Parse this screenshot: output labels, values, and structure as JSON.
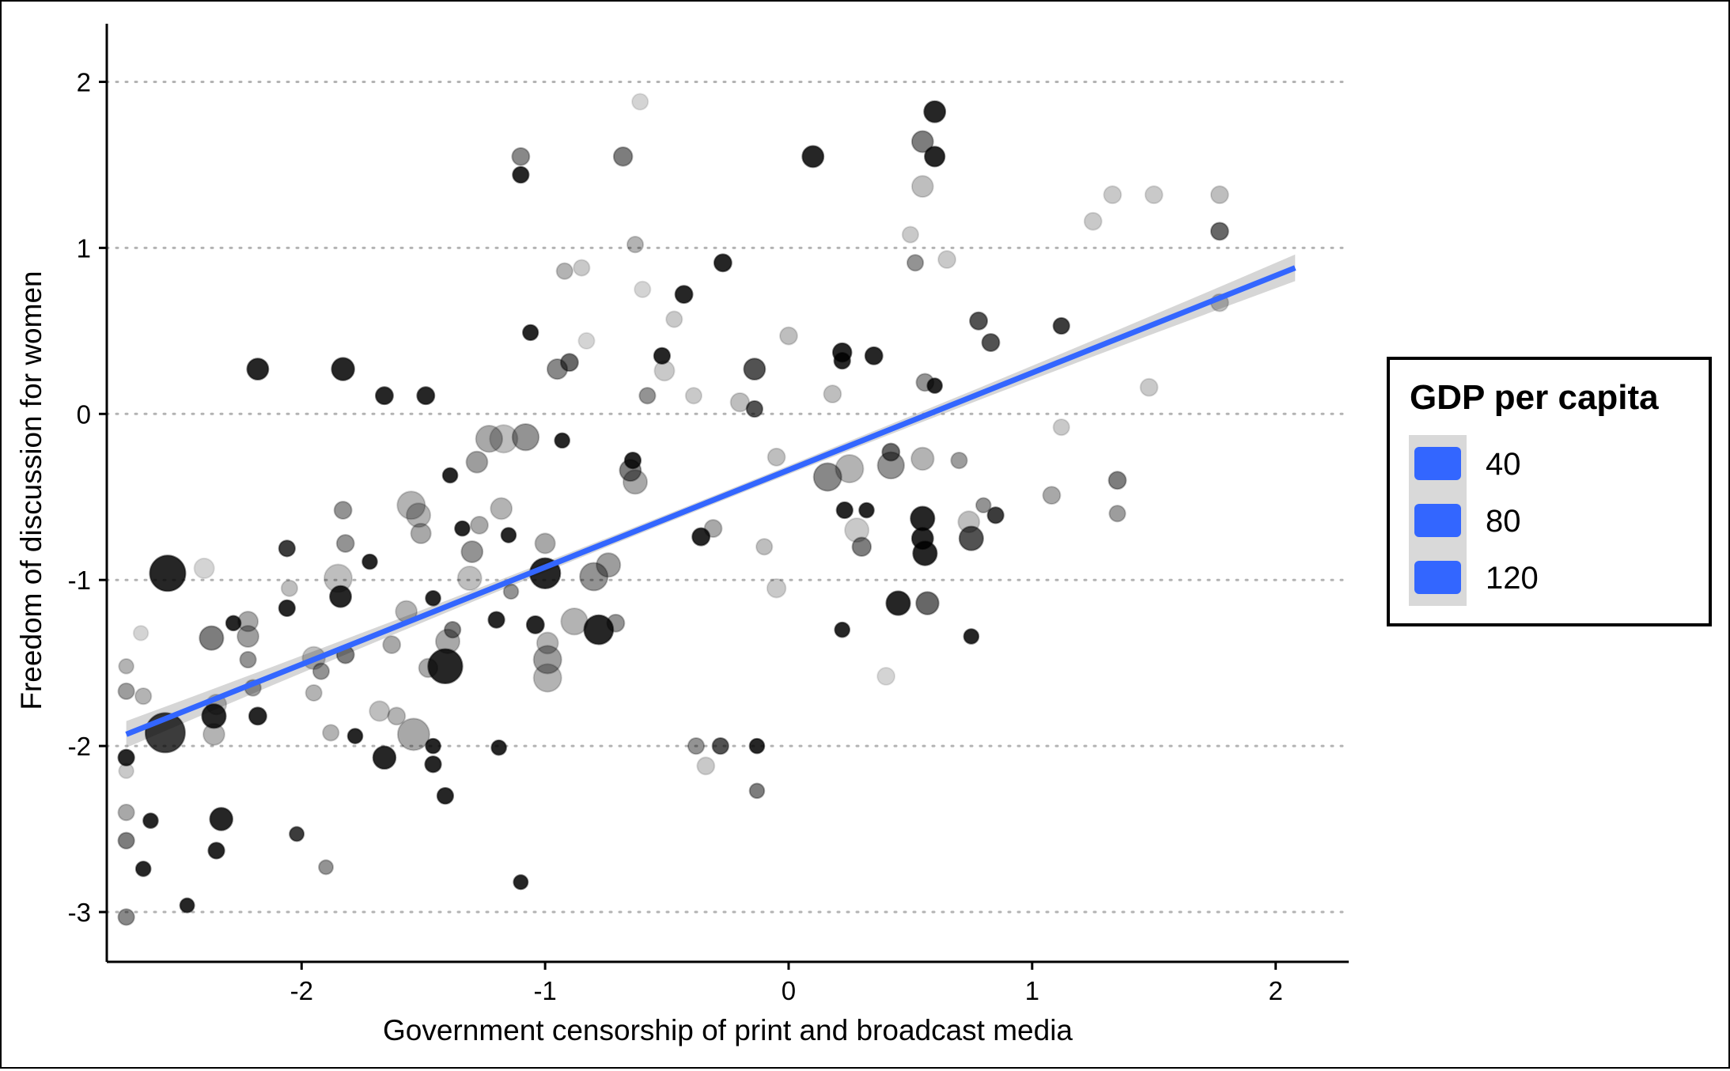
{
  "chart_data": {
    "type": "scatter",
    "title": "",
    "xlabel": "Government censorship of print and broadcast media",
    "ylabel": "Freedom of discussion for women",
    "xlim": [
      -2.8,
      2.3
    ],
    "ylim": [
      -3.3,
      2.35
    ],
    "x_ticks": [
      -2,
      -1,
      0,
      1,
      2
    ],
    "x_tick_labels": [
      "-2",
      "-1",
      "0",
      "1",
      "2"
    ],
    "y_ticks": [
      -3,
      -2,
      -1,
      0,
      1,
      2
    ],
    "y_tick_labels": [
      "-3",
      "-2",
      "-1",
      "0",
      "1",
      "2"
    ],
    "grid": "horizontal dotted lines at y ticks",
    "legend": {
      "title": "GDP per capita",
      "position": "right",
      "entries": [
        "40",
        "80",
        "120"
      ],
      "sizes": [
        40,
        80,
        120
      ]
    },
    "colors": {
      "points": "#000000",
      "trend_line": "#3366FF",
      "confidence_band": "#999999"
    },
    "trend_line": {
      "x": [
        -2.72,
        2.08
      ],
      "y": [
        -1.93,
        0.88
      ],
      "band_halfwidth_ends": 0.08,
      "band_halfwidth_center": 0.025
    },
    "point_format": "[x, y, gdp_per_capita, opacity]",
    "points": [
      [
        -2.55,
        -0.96,
        100,
        1.0
      ],
      [
        -2.56,
        -1.92,
        115,
        0.9
      ],
      [
        -2.72,
        -2.07,
        25,
        1.0
      ],
      [
        -2.72,
        -1.67,
        25,
        0.45
      ],
      [
        -2.72,
        -1.52,
        20,
        0.35
      ],
      [
        -2.72,
        -2.4,
        25,
        0.4
      ],
      [
        -2.72,
        -2.57,
        25,
        0.6
      ],
      [
        -2.72,
        -3.03,
        25,
        0.55
      ],
      [
        -2.72,
        -2.15,
        20,
        0.25
      ],
      [
        -2.65,
        -1.7,
        25,
        0.35
      ],
      [
        -2.65,
        -2.74,
        20,
        1.0
      ],
      [
        -2.62,
        -2.45,
        20,
        1.0
      ],
      [
        -2.66,
        -1.32,
        20,
        0.2
      ],
      [
        -2.47,
        -2.96,
        18,
        1.0
      ],
      [
        -2.33,
        -2.44,
        50,
        1.0
      ],
      [
        -2.35,
        -2.63,
        25,
        1.0
      ],
      [
        -2.36,
        -1.82,
        55,
        1.0
      ],
      [
        -2.37,
        -1.35,
        55,
        0.6
      ],
      [
        -2.36,
        -1.93,
        45,
        0.35
      ],
      [
        -2.35,
        -1.75,
        40,
        0.3
      ],
      [
        -2.4,
        -0.93,
        40,
        0.2
      ],
      [
        -2.28,
        -1.26,
        20,
        1.0
      ],
      [
        -2.22,
        -1.25,
        40,
        0.4
      ],
      [
        -2.22,
        -1.34,
        45,
        0.45
      ],
      [
        -2.22,
        -1.48,
        25,
        0.5
      ],
      [
        -2.18,
        -1.82,
        30,
        1.0
      ],
      [
        -2.18,
        0.27,
        45,
        1.0
      ],
      [
        -2.2,
        -1.65,
        25,
        0.45
      ],
      [
        -2.06,
        -0.81,
        25,
        0.9
      ],
      [
        -2.06,
        -1.17,
        25,
        1.0
      ],
      [
        -2.02,
        -2.53,
        18,
        0.9
      ],
      [
        -2.05,
        -1.05,
        25,
        0.3
      ],
      [
        -1.95,
        -1.47,
        50,
        0.3
      ],
      [
        -1.92,
        -1.55,
        25,
        0.5
      ],
      [
        -1.95,
        -1.68,
        25,
        0.35
      ],
      [
        -1.9,
        -2.73,
        18,
        0.5
      ],
      [
        -1.88,
        -1.92,
        25,
        0.35
      ],
      [
        -1.85,
        -0.99,
        70,
        0.3
      ],
      [
        -1.84,
        -1.1,
        45,
        1.0
      ],
      [
        -1.83,
        0.27,
        50,
        1.0
      ],
      [
        -1.83,
        -0.58,
        30,
        0.5
      ],
      [
        -1.82,
        -0.78,
        30,
        0.5
      ],
      [
        -1.82,
        -1.45,
        30,
        0.6
      ],
      [
        -1.78,
        -1.94,
        20,
        1.0
      ],
      [
        -1.72,
        -0.89,
        20,
        1.0
      ],
      [
        -1.68,
        -1.79,
        40,
        0.3
      ],
      [
        -1.66,
        0.11,
        30,
        1.0
      ],
      [
        -1.66,
        -2.07,
        50,
        1.0
      ],
      [
        -1.61,
        -1.82,
        30,
        0.35
      ],
      [
        -1.63,
        -1.39,
        30,
        0.4
      ],
      [
        -1.57,
        -1.19,
        45,
        0.35
      ],
      [
        -1.54,
        -1.93,
        85,
        0.4
      ],
      [
        -1.55,
        -0.55,
        70,
        0.35
      ],
      [
        -1.52,
        -0.61,
        55,
        0.35
      ],
      [
        -1.51,
        -0.72,
        40,
        0.4
      ],
      [
        -1.49,
        0.11,
        30,
        1.0
      ],
      [
        -1.48,
        -1.53,
        35,
        0.4
      ],
      [
        -1.46,
        -2.0,
        20,
        1.0
      ],
      [
        -1.46,
        -1.11,
        20,
        1.0
      ],
      [
        -1.46,
        -2.11,
        25,
        1.0
      ],
      [
        -1.41,
        -1.52,
        95,
        1.0
      ],
      [
        -1.4,
        -1.37,
        55,
        0.4
      ],
      [
        -1.41,
        -2.3,
        25,
        1.0
      ],
      [
        -1.39,
        -0.37,
        20,
        1.0
      ],
      [
        -1.38,
        -1.3,
        25,
        0.6
      ],
      [
        -1.34,
        -0.69,
        20,
        1.0
      ],
      [
        -1.3,
        -0.83,
        45,
        0.5
      ],
      [
        -1.31,
        -0.99,
        55,
        0.3
      ],
      [
        -1.28,
        -0.29,
        45,
        0.45
      ],
      [
        -1.23,
        -0.15,
        65,
        0.4
      ],
      [
        -1.27,
        -0.67,
        30,
        0.4
      ],
      [
        -1.19,
        -2.01,
        20,
        1.0
      ],
      [
        -1.18,
        -0.57,
        45,
        0.35
      ],
      [
        -1.17,
        -0.15,
        70,
        0.3
      ],
      [
        -1.2,
        -1.24,
        25,
        1.0
      ],
      [
        -1.15,
        -0.73,
        20,
        1.0
      ],
      [
        -1.14,
        -1.07,
        20,
        0.5
      ],
      [
        -1.1,
        1.44,
        25,
        1.0
      ],
      [
        -1.1,
        1.55,
        30,
        0.55
      ],
      [
        -1.1,
        -2.82,
        18,
        1.0
      ],
      [
        -1.08,
        -0.14,
        65,
        0.5
      ],
      [
        -1.06,
        0.49,
        22,
        1.0
      ],
      [
        -1.04,
        -1.27,
        30,
        1.0
      ],
      [
        -1.0,
        -0.96,
        80,
        1.0
      ],
      [
        -1.0,
        -0.78,
        40,
        0.4
      ],
      [
        -0.99,
        -1.38,
        45,
        0.35
      ],
      [
        -0.99,
        -1.48,
        70,
        0.45
      ],
      [
        -0.99,
        -1.59,
        70,
        0.35
      ],
      [
        -0.95,
        0.27,
        40,
        0.55
      ],
      [
        -0.93,
        -0.16,
        20,
        1.0
      ],
      [
        -0.92,
        0.86,
        25,
        0.35
      ],
      [
        -0.9,
        0.31,
        30,
        0.7
      ],
      [
        -0.88,
        -1.25,
        65,
        0.35
      ],
      [
        -0.85,
        0.88,
        25,
        0.25
      ],
      [
        -0.83,
        0.44,
        25,
        0.2
      ],
      [
        -0.8,
        -0.98,
        70,
        0.5
      ],
      [
        -0.78,
        -1.3,
        75,
        1.0
      ],
      [
        -0.74,
        -0.91,
        55,
        0.45
      ],
      [
        -0.71,
        -1.26,
        30,
        0.5
      ],
      [
        -0.68,
        1.55,
        35,
        0.6
      ],
      [
        -0.65,
        -0.34,
        45,
        0.6
      ],
      [
        -0.63,
        1.02,
        25,
        0.35
      ],
      [
        -0.63,
        -0.41,
        55,
        0.4
      ],
      [
        -0.64,
        -0.28,
        25,
        1.0
      ],
      [
        -0.61,
        1.88,
        25,
        0.2
      ],
      [
        -0.6,
        0.75,
        25,
        0.2
      ],
      [
        -0.58,
        0.11,
        25,
        0.5
      ],
      [
        -0.52,
        0.35,
        25,
        1.0
      ],
      [
        -0.51,
        0.26,
        40,
        0.25
      ],
      [
        -0.47,
        0.57,
        25,
        0.25
      ],
      [
        -0.43,
        0.72,
        30,
        1.0
      ],
      [
        -0.39,
        0.11,
        25,
        0.25
      ],
      [
        -0.38,
        -2.0,
        25,
        0.5
      ],
      [
        -0.36,
        -0.74,
        30,
        1.0
      ],
      [
        -0.34,
        -2.12,
        30,
        0.25
      ],
      [
        -0.31,
        -0.69,
        30,
        0.4
      ],
      [
        -0.27,
        0.91,
        30,
        1.0
      ],
      [
        -0.28,
        -2.0,
        25,
        0.8
      ],
      [
        -0.2,
        0.07,
        35,
        0.3
      ],
      [
        -0.14,
        0.27,
        45,
        0.8
      ],
      [
        -0.14,
        0.03,
        25,
        0.8
      ],
      [
        -0.1,
        -0.8,
        25,
        0.3
      ],
      [
        -0.13,
        -2.0,
        20,
        1.0
      ],
      [
        -0.13,
        -2.27,
        20,
        0.6
      ],
      [
        -0.05,
        -1.05,
        35,
        0.25
      ],
      [
        -0.05,
        -0.26,
        30,
        0.3
      ],
      [
        0.0,
        0.47,
        30,
        0.3
      ],
      [
        0.1,
        1.55,
        45,
        1.0
      ],
      [
        0.16,
        -0.38,
        70,
        0.55
      ],
      [
        0.18,
        0.12,
        30,
        0.3
      ],
      [
        0.22,
        0.37,
        35,
        1.0
      ],
      [
        0.22,
        0.32,
        25,
        1.0
      ],
      [
        0.23,
        -0.58,
        25,
        1.0
      ],
      [
        0.22,
        -1.3,
        20,
        1.0
      ],
      [
        0.25,
        -0.33,
        70,
        0.35
      ],
      [
        0.28,
        -0.7,
        55,
        0.25
      ],
      [
        0.3,
        -0.8,
        35,
        0.6
      ],
      [
        0.32,
        -0.58,
        20,
        1.0
      ],
      [
        0.35,
        0.35,
        30,
        1.0
      ],
      [
        0.42,
        -0.31,
        65,
        0.5
      ],
      [
        0.4,
        -1.58,
        30,
        0.2
      ],
      [
        0.42,
        -0.23,
        30,
        0.7
      ],
      [
        0.45,
        -1.14,
        55,
        1.0
      ],
      [
        0.5,
        1.08,
        25,
        0.25
      ],
      [
        0.52,
        0.91,
        25,
        0.5
      ],
      [
        0.55,
        1.64,
        45,
        0.6
      ],
      [
        0.55,
        1.37,
        45,
        0.3
      ],
      [
        0.55,
        -0.63,
        55,
        1.0
      ],
      [
        0.55,
        -0.75,
        45,
        1.0
      ],
      [
        0.56,
        -0.84,
        55,
        1.0
      ],
      [
        0.55,
        -0.27,
        50,
        0.35
      ],
      [
        0.56,
        0.19,
        30,
        0.5
      ],
      [
        0.57,
        -1.14,
        50,
        0.7
      ],
      [
        0.6,
        1.82,
        45,
        1.0
      ],
      [
        0.6,
        1.55,
        40,
        1.0
      ],
      [
        0.6,
        0.17,
        20,
        1.0
      ],
      [
        0.65,
        0.93,
        30,
        0.25
      ],
      [
        0.7,
        -0.28,
        25,
        0.45
      ],
      [
        0.75,
        -0.75,
        55,
        0.8
      ],
      [
        0.74,
        -0.65,
        45,
        0.3
      ],
      [
        0.75,
        -1.34,
        20,
        1.0
      ],
      [
        0.78,
        0.56,
        30,
        0.8
      ],
      [
        0.83,
        0.43,
        30,
        0.8
      ],
      [
        0.85,
        -0.61,
        25,
        0.9
      ],
      [
        0.8,
        -0.55,
        20,
        0.5
      ],
      [
        1.12,
        0.53,
        25,
        0.9
      ],
      [
        1.08,
        -0.49,
        30,
        0.4
      ],
      [
        1.12,
        -0.08,
        25,
        0.25
      ],
      [
        1.25,
        1.16,
        30,
        0.25
      ],
      [
        1.33,
        1.32,
        30,
        0.25
      ],
      [
        1.35,
        -0.4,
        30,
        0.6
      ],
      [
        1.35,
        -0.6,
        25,
        0.45
      ],
      [
        1.5,
        1.32,
        30,
        0.25
      ],
      [
        1.48,
        0.16,
        30,
        0.25
      ],
      [
        1.77,
        1.32,
        30,
        0.3
      ],
      [
        1.77,
        1.1,
        30,
        0.7
      ],
      [
        1.77,
        0.67,
        30,
        0.3
      ]
    ]
  }
}
